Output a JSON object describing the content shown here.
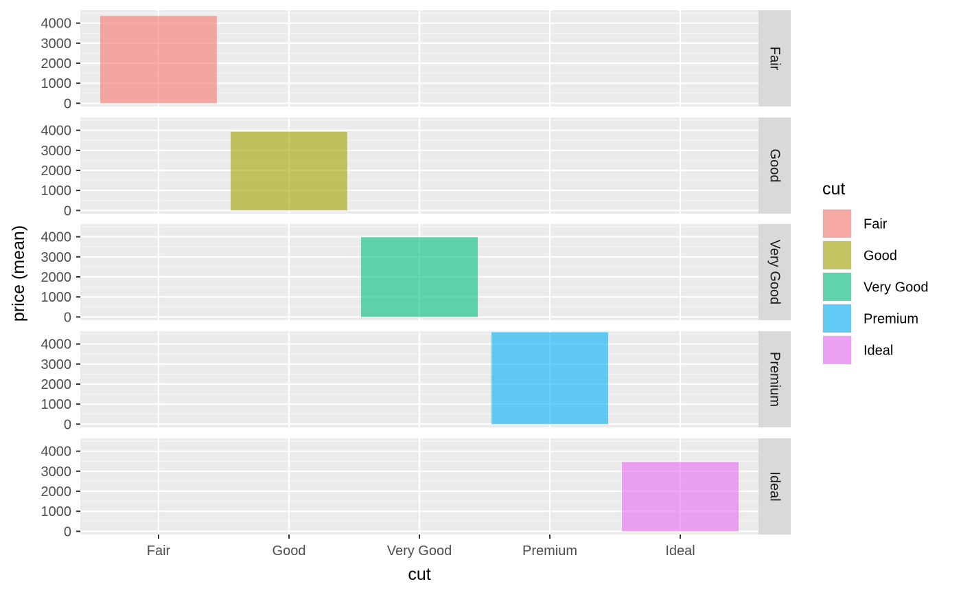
{
  "chart_data": {
    "type": "bar",
    "facet_by": "cut",
    "facet_strip_position": "right",
    "categories": [
      "Fair",
      "Good",
      "Very Good",
      "Premium",
      "Ideal"
    ],
    "facets": [
      {
        "label": "Fair",
        "category": "Fair",
        "value": 4359,
        "color": "#F8766D"
      },
      {
        "label": "Good",
        "category": "Good",
        "value": 3929,
        "color": "#A3A500"
      },
      {
        "label": "Very Good",
        "category": "Very Good",
        "value": 3982,
        "color": "#00BF7D"
      },
      {
        "label": "Premium",
        "category": "Premium",
        "value": 4584,
        "color": "#00B0F6"
      },
      {
        "label": "Ideal",
        "category": "Ideal",
        "value": 3458,
        "color": "#E76BF3"
      }
    ],
    "xlabel": "cut",
    "ylabel": "price (mean)",
    "ylim": [
      0,
      4500
    ],
    "yticks": [
      0,
      1000,
      2000,
      3000,
      4000
    ],
    "grid": true,
    "bar_opacity": 0.6,
    "legend": {
      "title": "cut",
      "position": "right",
      "entries": [
        {
          "label": "Fair",
          "color": "#F8766D"
        },
        {
          "label": "Good",
          "color": "#A3A500"
        },
        {
          "label": "Very Good",
          "color": "#00BF7D"
        },
        {
          "label": "Premium",
          "color": "#00B0F6"
        },
        {
          "label": "Ideal",
          "color": "#E76BF3"
        }
      ]
    }
  }
}
